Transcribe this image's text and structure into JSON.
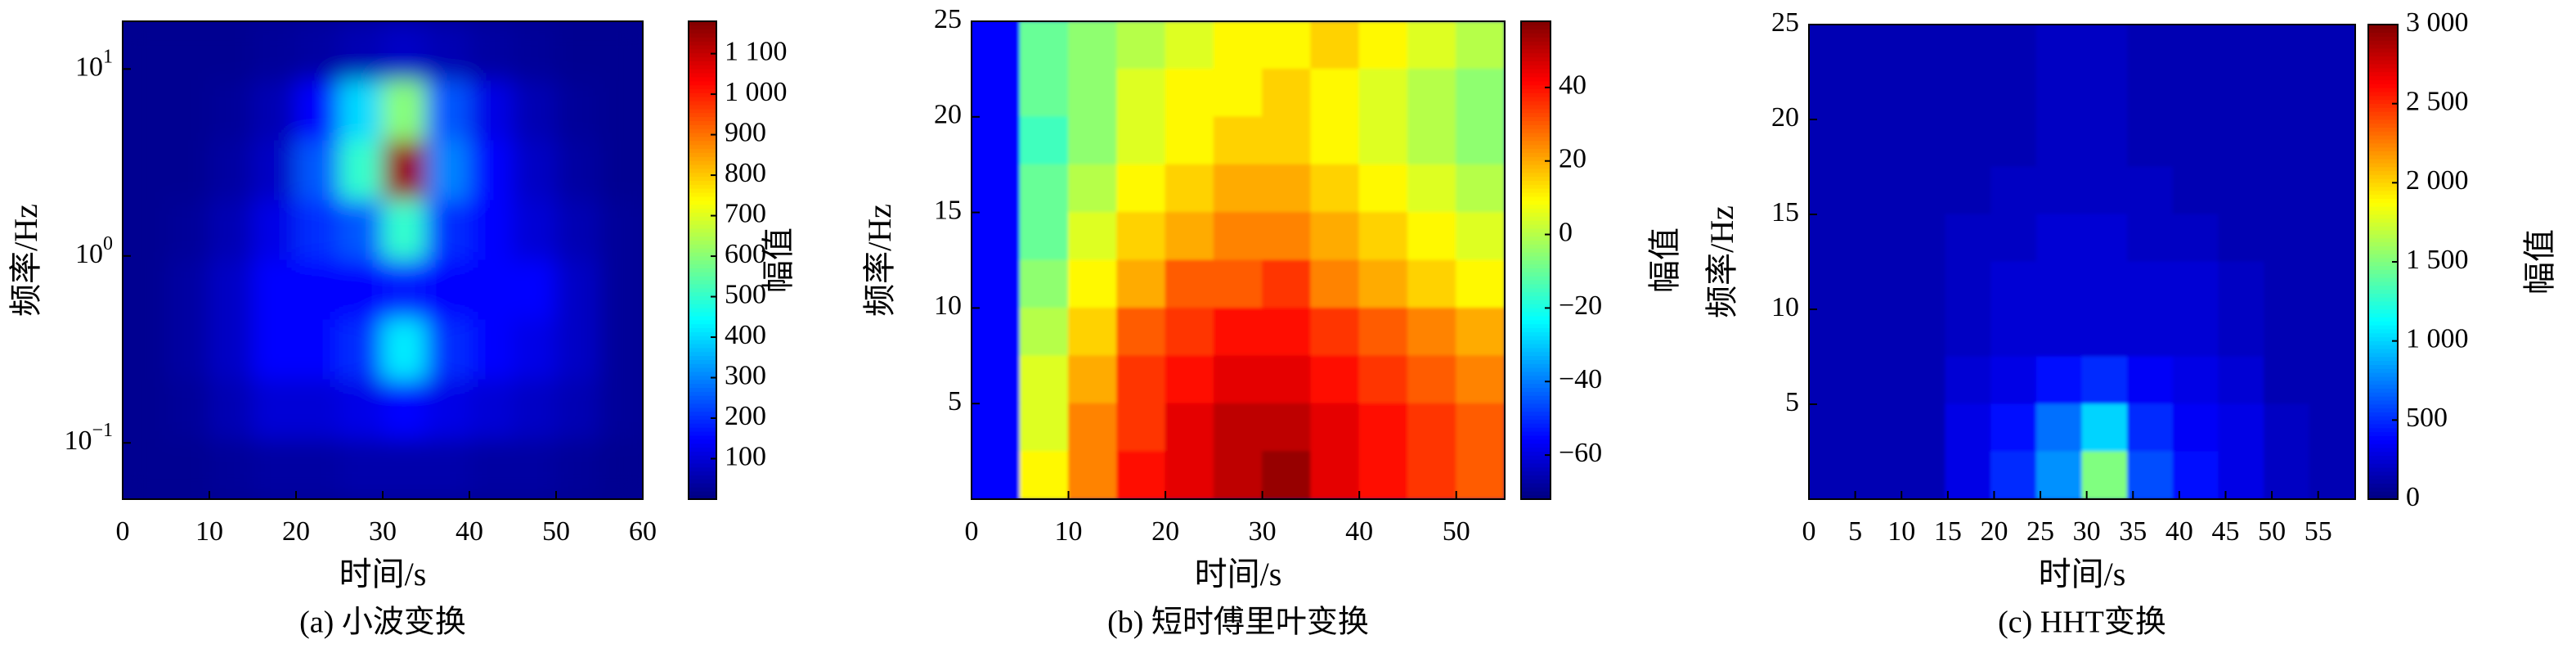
{
  "chart_data": [
    {
      "type": "heatmap",
      "caption": "(a) 小波变换",
      "xlabel": "时间/s",
      "ylabel": "频率/Hz",
      "colorbar_label": "幅值",
      "colormap": "jet",
      "xlim": [
        0,
        60
      ],
      "xticks": [
        0,
        10,
        20,
        30,
        40,
        50,
        60
      ],
      "yscale": "log",
      "ylim": [
        0.05,
        18
      ],
      "yticks": [
        {
          "value": 0.1,
          "label": "10",
          "exponent": "−1"
        },
        {
          "value": 1,
          "label": "10",
          "exponent": "0"
        },
        {
          "value": 10,
          "label": "10",
          "exponent": "1"
        }
      ],
      "clim": [
        0,
        1180
      ],
      "cticks": [
        100,
        200,
        300,
        400,
        500,
        600,
        700,
        800,
        900,
        {
          "value": 1000,
          "label": "1 000"
        },
        {
          "value": 1100,
          "label": "1 100"
        }
      ],
      "z": [
        [
          20,
          20,
          20,
          30,
          40,
          60,
          80,
          60,
          40,
          30,
          20,
          20
        ],
        [
          20,
          20,
          30,
          60,
          150,
          400,
          600,
          250,
          120,
          60,
          30,
          20
        ],
        [
          20,
          20,
          40,
          80,
          250,
          500,
          1150,
          300,
          150,
          80,
          40,
          20
        ],
        [
          20,
          30,
          60,
          120,
          200,
          250,
          500,
          200,
          150,
          100,
          60,
          30
        ],
        [
          20,
          40,
          80,
          150,
          150,
          150,
          180,
          150,
          150,
          150,
          80,
          30
        ],
        [
          20,
          40,
          80,
          150,
          150,
          200,
          420,
          200,
          150,
          120,
          80,
          30
        ],
        [
          20,
          30,
          60,
          100,
          100,
          120,
          150,
          120,
          100,
          80,
          60,
          30
        ],
        [
          20,
          20,
          30,
          40,
          40,
          50,
          50,
          50,
          40,
          40,
          30,
          20
        ]
      ]
    },
    {
      "type": "heatmap",
      "caption": "(b) 短时傅里叶变换",
      "xlabel": "时间/s",
      "ylabel": "频率/Hz",
      "colorbar_label": "幅值",
      "colormap": "jet",
      "xlim": [
        0,
        55
      ],
      "xticks": [
        0,
        10,
        20,
        30,
        40,
        50
      ],
      "ylim": [
        0,
        25
      ],
      "yticks": [
        5,
        10,
        15,
        20,
        25
      ],
      "clim": [
        -72,
        58
      ],
      "cticks": [
        {
          "value": -60,
          "label": "−60"
        },
        {
          "value": -40,
          "label": "−40"
        },
        {
          "value": -20,
          "label": "−20"
        },
        0,
        20,
        40
      ],
      "z": [
        [
          -55,
          -10,
          -5,
          0,
          5,
          10,
          10,
          15,
          10,
          5,
          0
        ],
        [
          -55,
          -10,
          -5,
          5,
          10,
          10,
          15,
          10,
          5,
          0,
          -5
        ],
        [
          -55,
          -15,
          -5,
          5,
          10,
          15,
          15,
          10,
          5,
          0,
          -5
        ],
        [
          -55,
          -10,
          0,
          10,
          15,
          20,
          20,
          15,
          10,
          5,
          0
        ],
        [
          -55,
          -10,
          5,
          15,
          20,
          25,
          25,
          20,
          15,
          10,
          5
        ],
        [
          -55,
          -5,
          10,
          20,
          30,
          30,
          35,
          25,
          20,
          15,
          10
        ],
        [
          -55,
          0,
          15,
          30,
          35,
          40,
          40,
          35,
          30,
          25,
          20
        ],
        [
          -55,
          5,
          20,
          35,
          40,
          45,
          45,
          40,
          35,
          30,
          25
        ],
        [
          -55,
          5,
          25,
          35,
          45,
          50,
          50,
          45,
          40,
          35,
          30
        ],
        [
          -55,
          10,
          25,
          40,
          45,
          50,
          55,
          45,
          40,
          35,
          30
        ]
      ]
    },
    {
      "type": "heatmap",
      "caption": "(c) HHT变换",
      "xlabel": "时间/s",
      "ylabel": "频率/Hz",
      "colorbar_label": "幅值",
      "colormap": "jet",
      "xlim": [
        0,
        59
      ],
      "xticks": [
        0,
        5,
        10,
        15,
        20,
        25,
        30,
        35,
        40,
        45,
        50,
        55
      ],
      "ylim": [
        0,
        25
      ],
      "yticks": [
        5,
        10,
        15,
        20,
        25
      ],
      "clim": [
        0,
        3000
      ],
      "cticks": [
        0,
        500,
        {
          "value": 1000,
          "label": "1 000"
        },
        {
          "value": 1500,
          "label": "1 500"
        },
        {
          "value": 2000,
          "label": "2 000"
        },
        {
          "value": 2500,
          "label": "2 500"
        },
        {
          "value": 3000,
          "label": "3 000"
        }
      ],
      "z": [
        [
          150,
          150,
          150,
          150,
          150,
          200,
          200,
          150,
          150,
          150,
          150,
          150
        ],
        [
          150,
          150,
          150,
          150,
          150,
          200,
          200,
          150,
          150,
          150,
          150,
          150
        ],
        [
          150,
          150,
          150,
          150,
          150,
          200,
          200,
          150,
          150,
          150,
          150,
          150
        ],
        [
          150,
          150,
          150,
          150,
          200,
          200,
          200,
          200,
          150,
          150,
          150,
          150
        ],
        [
          150,
          150,
          150,
          200,
          200,
          250,
          250,
          200,
          200,
          150,
          150,
          150
        ],
        [
          150,
          150,
          150,
          200,
          250,
          250,
          250,
          250,
          250,
          200,
          150,
          150
        ],
        [
          150,
          150,
          150,
          200,
          250,
          250,
          250,
          250,
          250,
          200,
          150,
          150
        ],
        [
          150,
          150,
          150,
          250,
          300,
          400,
          500,
          350,
          300,
          250,
          150,
          150
        ],
        [
          150,
          150,
          150,
          300,
          400,
          700,
          1000,
          500,
          350,
          300,
          200,
          150
        ],
        [
          150,
          150,
          150,
          300,
          500,
          800,
          1500,
          600,
          400,
          300,
          200,
          150
        ]
      ]
    }
  ]
}
